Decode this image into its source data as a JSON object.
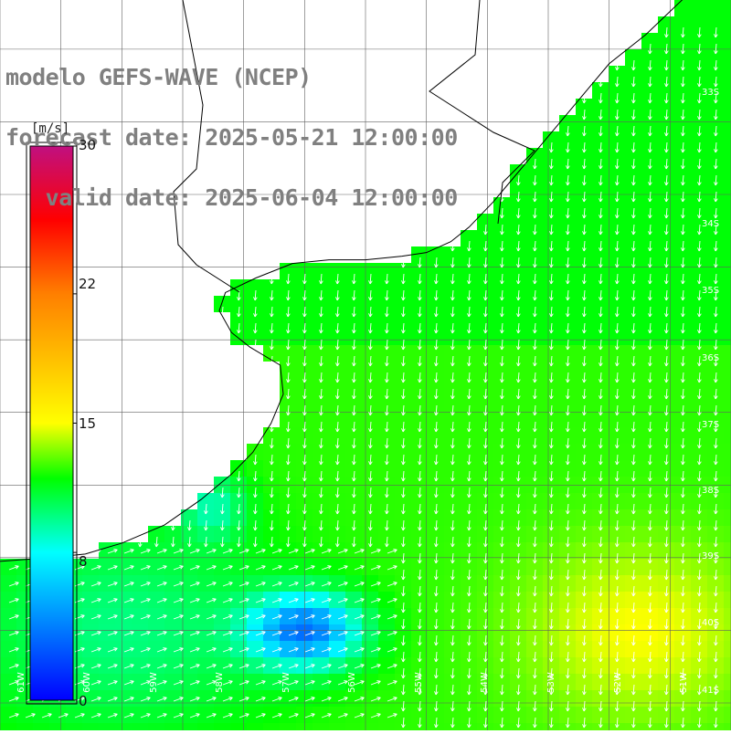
{
  "title": {
    "line1": "modelo GEFS-WAVE (NCEP)",
    "line2": "forecast date: 2025-05-21 12:00:00",
    "line3": "   valid date: 2025-06-04 12:00:00"
  },
  "colorbar": {
    "unit": "[m/s]",
    "ticks": [
      "30",
      "22",
      "15",
      "8",
      "0"
    ],
    "tick_values": [
      30,
      22,
      15,
      8,
      0
    ],
    "min": 0,
    "max": 30
  },
  "axes": {
    "lat_labels": [
      "33S",
      "34S",
      "35S",
      "36S",
      "37S",
      "38S",
      "39S",
      "40S",
      "41S"
    ],
    "lon_labels": [
      "61W",
      "60W",
      "59W",
      "58W",
      "57W",
      "56W",
      "55W",
      "54W",
      "53W",
      "52W",
      "51W"
    ]
  },
  "colors": {
    "land": "#ffffff",
    "coastline": "#000000",
    "grid": "#606060",
    "arrows": "#ffffff",
    "title": "#808080"
  },
  "chart_data": {
    "type": "heatmap",
    "variable": "wind speed",
    "units": "m/s",
    "xlim": [
      -62,
      -50
    ],
    "ylim": [
      -41,
      -32
    ],
    "color_scale": [
      {
        "value": 0,
        "color": "#0000ff"
      },
      {
        "value": 8,
        "color": "#00ffff"
      },
      {
        "value": 12,
        "color": "#00ff00"
      },
      {
        "value": 15,
        "color": "#ffff00"
      },
      {
        "value": 22,
        "color": "#ff7f00"
      },
      {
        "value": 26,
        "color": "#ff0000"
      },
      {
        "value": 30,
        "color": "#c01080"
      }
    ],
    "field_summary": {
      "north_east": 11.5,
      "center": 12.5,
      "south_east_max": 15,
      "south_west": 10,
      "local_min_near_57W_40S": 4
    },
    "arrow_direction": "mostly southward (north of 39S), northeastward (south-west region)"
  }
}
